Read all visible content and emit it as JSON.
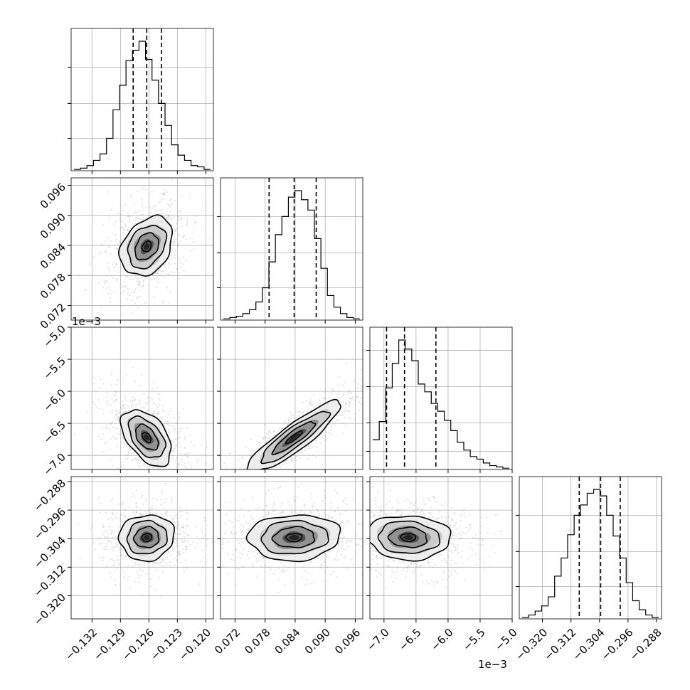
{
  "chart_data": {
    "type": "corner",
    "grid": true,
    "axis_offset_label": "1e−3",
    "parameters": [
      {
        "range": [
          -0.1342,
          -0.1192
        ],
        "ticks": [
          -0.132,
          -0.129,
          -0.126,
          -0.123,
          -0.12
        ],
        "tick_labels": [
          "−0.132",
          "−0.129",
          "−0.126",
          "−0.123",
          "−0.120"
        ],
        "quantiles": [
          -0.12766,
          -0.12623,
          -0.12468
        ]
      },
      {
        "range": [
          0.0691,
          0.0975
        ],
        "ticks": [
          0.072,
          0.078,
          0.084,
          0.09,
          0.096
        ],
        "tick_labels": [
          "0.072",
          "0.078",
          "0.084",
          "0.090",
          "0.096"
        ],
        "quantiles": [
          0.0788,
          0.0838,
          0.0882
        ]
      },
      {
        "range": [
          -7.22,
          -5.0
        ],
        "scale": 0.001,
        "ticks": [
          -7.0,
          -6.5,
          -6.0,
          -5.5,
          -5.0
        ],
        "tick_labels": [
          "−7.0",
          "−6.5",
          "−6.0",
          "−5.5",
          "−5.0"
        ],
        "quantiles": [
          -6.96,
          -6.68,
          -6.19
        ]
      },
      {
        "range": [
          -0.3265,
          -0.2866
        ],
        "ticks": [
          -0.32,
          -0.312,
          -0.304,
          -0.296,
          -0.288
        ],
        "tick_labels": [
          "−0.320",
          "−0.312",
          "−0.304",
          "−0.296",
          "−0.288"
        ],
        "quantiles": [
          -0.30968,
          -0.30368,
          -0.29818
        ]
      }
    ],
    "histograms": [
      {
        "counts": [
          0.01,
          0.02,
          0.04,
          0.08,
          0.13,
          0.25,
          0.47,
          0.66,
          0.85,
          0.93,
          1.0,
          0.86,
          0.7,
          0.52,
          0.35,
          0.2,
          0.12,
          0.08,
          0.04,
          0.03,
          0.01
        ]
      },
      {
        "counts": [
          0.01,
          0.02,
          0.03,
          0.05,
          0.08,
          0.14,
          0.25,
          0.45,
          0.66,
          0.8,
          0.95,
          1.0,
          0.93,
          0.85,
          0.63,
          0.4,
          0.19,
          0.1,
          0.05,
          0.02,
          0.01
        ]
      },
      {
        "counts": [
          0.23,
          0.37,
          0.63,
          0.82,
          1.0,
          0.93,
          0.84,
          0.66,
          0.6,
          0.51,
          0.45,
          0.38,
          0.3,
          0.21,
          0.15,
          0.1,
          0.08,
          0.05,
          0.03,
          0.02,
          0.01
        ]
      },
      {
        "counts": [
          0.01,
          0.03,
          0.06,
          0.1,
          0.17,
          0.33,
          0.47,
          0.65,
          0.8,
          0.88,
          0.97,
          1.0,
          0.95,
          0.8,
          0.64,
          0.47,
          0.28,
          0.14,
          0.07,
          0.03,
          0.01
        ]
      }
    ],
    "joint_panels": [
      {
        "x": 0,
        "y": 1,
        "center": [
          -0.12623,
          0.0838
        ],
        "axes": [
          [
            0.00126,
            0.00195
          ],
          [
            -0.00056,
            0.00222
          ]
        ]
      },
      {
        "x": 0,
        "y": 2,
        "center": [
          -0.12623,
          -6.72
        ],
        "axes": [
          [
            0.00116,
            0.00035
          ],
          [
            -0.00063,
            0.22
          ]
        ]
      },
      {
        "x": 1,
        "y": 2,
        "center": [
          0.0838,
          -6.72
        ],
        "axes": [
          [
            0.00465,
            0.26
          ],
          [
            -0.00045,
            0.1
          ]
        ]
      },
      {
        "x": 0,
        "y": 3,
        "center": [
          -0.12623,
          -0.30368
        ],
        "axes": [
          [
            0.00145,
            0.0002
          ],
          [
            0.0,
            0.0032
          ]
        ]
      },
      {
        "x": 1,
        "y": 3,
        "center": [
          0.0838,
          -0.30368
        ],
        "axes": [
          [
            0.0046,
            0.0002
          ],
          [
            0.0,
            0.0032
          ]
        ]
      },
      {
        "x": 2,
        "y": 3,
        "center": [
          -6.62,
          -0.30368
        ],
        "axes": [
          [
            0.33,
            -0.0002
          ],
          [
            0.0,
            0.0031
          ]
        ]
      }
    ],
    "contour_levels": [
      0.5,
      1.0,
      1.5,
      2.0
    ],
    "colors": {
      "line": "#000000",
      "grid": "#b0b0b0",
      "scatter": "#9a9a9a"
    }
  }
}
